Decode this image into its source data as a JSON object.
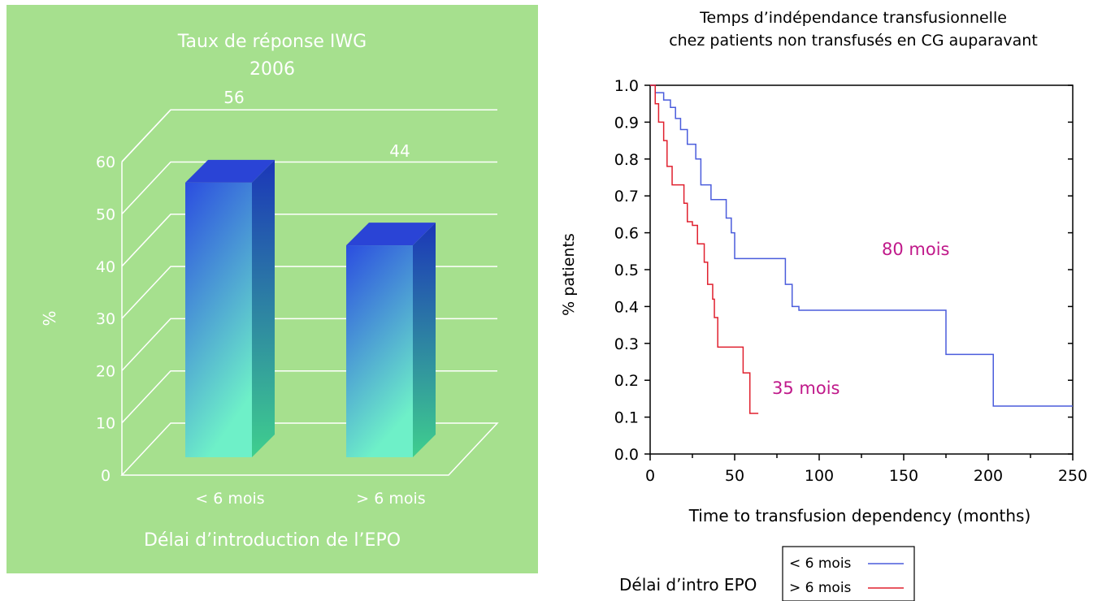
{
  "chart_data": [
    {
      "type": "bar",
      "title": "Taux de réponse IWG",
      "subtitle": "2006",
      "xlabel": "Délai d’introduction de l’EPO",
      "ylabel": "%",
      "categories": [
        "< 6 mois",
        "> 6 mois"
      ],
      "values": [
        56,
        44
      ],
      "data_labels": [
        "56",
        "44"
      ],
      "ylim": [
        0,
        60
      ],
      "yticks": [
        "0",
        "10",
        "20",
        "30",
        "40",
        "50",
        "60"
      ],
      "grid": true,
      "background_color": "#a6e08e",
      "bar_gradient": [
        "#2b4de0",
        "#6ef0c8"
      ]
    },
    {
      "type": "line",
      "title": "Temps d’indépendance transfusionnelle",
      "subtitle": "chez patients non transfusés en CG auparavant",
      "xlabel": "Time to transfusion dependency (months)",
      "ylabel": "% patients",
      "xlim": [
        0,
        250
      ],
      "ylim": [
        0,
        1
      ],
      "xticks": [
        "0",
        "50",
        "100",
        "150",
        "200",
        "250"
      ],
      "yticks": [
        "0.0",
        "0.1",
        "0.2",
        "0.3",
        "0.4",
        "0.5",
        "0.6",
        "0.7",
        "0.8",
        "0.9",
        "1.0"
      ],
      "grid": false,
      "legend_title": "Délai d’intro EPO",
      "legend_position": "bottom",
      "series": [
        {
          "name": "< 6 mois",
          "color": "#4a5cdc",
          "label": "80 mois",
          "label_color": "#c0198a",
          "x": [
            0,
            3,
            8,
            12,
            15,
            18,
            22,
            27,
            30,
            36,
            45,
            48,
            50,
            80,
            84,
            88,
            175,
            203,
            250
          ],
          "y": [
            1.0,
            0.98,
            0.96,
            0.94,
            0.91,
            0.88,
            0.84,
            0.8,
            0.73,
            0.69,
            0.64,
            0.6,
            0.53,
            0.46,
            0.4,
            0.39,
            0.27,
            0.13,
            0.13
          ]
        },
        {
          "name": "> 6 mois",
          "color": "#e0202e",
          "label": "35 mois",
          "label_color": "#c0198a",
          "x": [
            0,
            3,
            5,
            8,
            10,
            13,
            20,
            22,
            25,
            28,
            32,
            34,
            37,
            38,
            40,
            43,
            55,
            59,
            64
          ],
          "y": [
            1.0,
            0.95,
            0.9,
            0.85,
            0.78,
            0.73,
            0.68,
            0.63,
            0.62,
            0.57,
            0.52,
            0.46,
            0.42,
            0.37,
            0.29,
            0.29,
            0.22,
            0.11,
            0.11
          ]
        }
      ]
    }
  ]
}
